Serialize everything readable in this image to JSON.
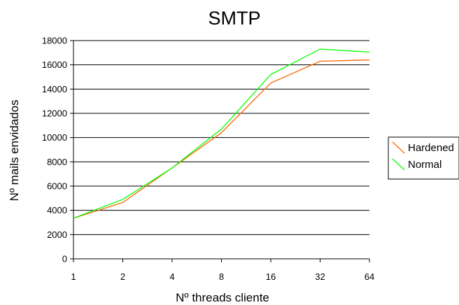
{
  "chart_data": {
    "type": "line",
    "title": "SMTP",
    "xlabel": "Nº threads cliente",
    "ylabel": "Nº mails envidados",
    "categories": [
      "1",
      "2",
      "4",
      "8",
      "16",
      "32",
      "64"
    ],
    "ylim": [
      0,
      18000
    ],
    "yticks": [
      0,
      2000,
      4000,
      6000,
      8000,
      10000,
      12000,
      14000,
      16000,
      18000
    ],
    "grid": true,
    "legend_position": "right",
    "series": [
      {
        "name": "Hardened",
        "color": "#ff6600",
        "values": [
          3350,
          4650,
          7500,
          10400,
          14500,
          16300,
          16400
        ]
      },
      {
        "name": "Normal",
        "color": "#00ff00",
        "values": [
          3350,
          4900,
          7500,
          10700,
          15200,
          17300,
          17050
        ]
      }
    ]
  }
}
